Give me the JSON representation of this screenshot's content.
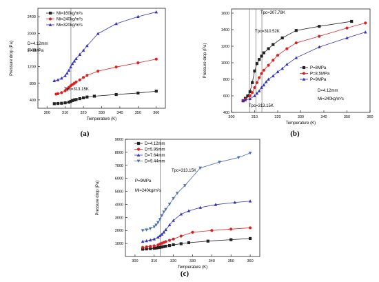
{
  "chart_data": [
    {
      "type": "line",
      "panel": "(a)",
      "xlabel": "Temperature (K)",
      "ylabel": "Pressure drop (Pa)",
      "xlim": [
        295,
        365
      ],
      "ylim": [
        200,
        2600
      ],
      "xticks": [
        300,
        310,
        320,
        330,
        340,
        350,
        360
      ],
      "yticks": [
        400,
        800,
        1200,
        1600,
        2000,
        2400
      ],
      "legend": "top-left",
      "annotations": [
        "D=4.12mm",
        "P=9MPa",
        "Tpc=313.15K"
      ],
      "vlines": [
        313.15
      ],
      "series": [
        {
          "name": "Mi=160kg/m²s",
          "color": "#222222",
          "marker": "square",
          "x": [
            304,
            306,
            308,
            310,
            312,
            313,
            314,
            315,
            316,
            318,
            320,
            322,
            326,
            338,
            350,
            360
          ],
          "y": [
            310,
            315,
            320,
            330,
            345,
            365,
            385,
            400,
            410,
            430,
            450,
            470,
            490,
            530,
            565,
            610
          ]
        },
        {
          "name": "Mi=240kg/m²s",
          "color": "#e02020",
          "marker": "circle",
          "x": [
            305,
            306,
            308,
            310,
            311,
            312,
            313,
            314,
            315,
            316,
            318,
            320,
            322,
            328,
            338,
            350,
            360
          ],
          "y": [
            540,
            550,
            575,
            620,
            660,
            700,
            740,
            770,
            800,
            830,
            880,
            940,
            990,
            1090,
            1190,
            1290,
            1380
          ]
        },
        {
          "name": "Mi=320kg/m²s",
          "color": "#3333bb",
          "marker": "triangle",
          "x": [
            304,
            306,
            308,
            310,
            311,
            312,
            313,
            314,
            315,
            316,
            318,
            320,
            322,
            328,
            338,
            350,
            360
          ],
          "y": [
            860,
            880,
            920,
            980,
            1040,
            1110,
            1190,
            1270,
            1330,
            1390,
            1490,
            1590,
            1700,
            1990,
            2230,
            2400,
            2510
          ]
        }
      ]
    },
    {
      "type": "line",
      "panel": "(b)",
      "xlabel": "Temperature (K)",
      "ylabel": "Pressure drop (Pa)",
      "xlim": [
        300,
        360
      ],
      "ylim": [
        400,
        1650
      ],
      "xticks": [
        300,
        310,
        320,
        330,
        340,
        350,
        360
      ],
      "yticks": [
        400,
        600,
        800,
        1000,
        1200,
        1400,
        1600
      ],
      "legend": "bottom-right",
      "annotations": [
        "D=4.12mm",
        "Mi=240kg/m²s",
        "Tpc=313.15K",
        "Tpc=310.52K",
        "Tpc=307.78K"
      ],
      "vlines": [
        307.78,
        310.52,
        313.15
      ],
      "series": [
        {
          "name": "P=8MPa",
          "color": "#222222",
          "marker": "square",
          "x": [
            305,
            306,
            307,
            308,
            309,
            310,
            311,
            312,
            313,
            314,
            316,
            318,
            322,
            328,
            338,
            352
          ],
          "y": [
            540,
            570,
            600,
            650,
            760,
            900,
            990,
            1040,
            1080,
            1120,
            1170,
            1220,
            1300,
            1390,
            1440,
            1500
          ]
        },
        {
          "name": "P=8.5MPa",
          "color": "#e02020",
          "marker": "circle",
          "x": [
            305,
            306,
            308,
            309,
            310,
            311,
            312,
            313,
            314,
            316,
            318,
            320,
            324,
            328,
            338,
            350,
            358
          ],
          "y": [
            545,
            560,
            600,
            640,
            700,
            760,
            820,
            870,
            910,
            970,
            1030,
            1090,
            1170,
            1240,
            1320,
            1420,
            1480
          ]
        },
        {
          "name": "P=9MPa",
          "color": "#3333bb",
          "marker": "triangle",
          "x": [
            305,
            306,
            308,
            310,
            311,
            312,
            313,
            314,
            315,
            316,
            318,
            320,
            322,
            324,
            328,
            338,
            350,
            358
          ],
          "y": [
            545,
            550,
            565,
            600,
            630,
            660,
            700,
            730,
            770,
            800,
            840,
            890,
            930,
            980,
            1060,
            1190,
            1300,
            1370
          ]
        }
      ]
    },
    {
      "type": "line",
      "panel": "(c)",
      "xlabel": "Temperature (K)",
      "ylabel": "Pressure drop (Pa)",
      "xlim": [
        295,
        365
      ],
      "ylim": [
        0,
        9000
      ],
      "xticks": [
        300,
        310,
        320,
        330,
        340,
        350,
        360
      ],
      "yticks": [
        1000,
        2000,
        3000,
        4000,
        5000,
        6000,
        7000,
        8000,
        9000
      ],
      "legend": "top-left",
      "annotations": [
        "P=9MPa",
        "Mi=240kg/m²s",
        "Tpc=313.15K"
      ],
      "vlines": [
        313.15
      ],
      "series": [
        {
          "name": "D=4.12mm",
          "color": "#222222",
          "marker": "square",
          "x": [
            304,
            306,
            308,
            310,
            311,
            312,
            313,
            314,
            315,
            316,
            318,
            320,
            324,
            328,
            338,
            350,
            360
          ],
          "y": [
            560,
            580,
            600,
            630,
            650,
            680,
            700,
            730,
            760,
            790,
            840,
            900,
            980,
            1060,
            1180,
            1290,
            1380
          ]
        },
        {
          "name": "D=5.95mm",
          "color": "#e02020",
          "marker": "circle",
          "x": [
            304,
            306,
            308,
            310,
            312,
            313,
            314,
            315,
            316,
            318,
            320,
            324,
            330,
            340,
            350,
            360
          ],
          "y": [
            700,
            740,
            780,
            820,
            890,
            960,
            1020,
            1080,
            1140,
            1240,
            1340,
            1560,
            1860,
            2000,
            2100,
            2200
          ]
        },
        {
          "name": "D=7.64mm",
          "color": "#3333bb",
          "marker": "triangle",
          "x": [
            304,
            306,
            308,
            310,
            312,
            313,
            314,
            315,
            316,
            318,
            320,
            324,
            328,
            334,
            342,
            352,
            360
          ],
          "y": [
            1150,
            1200,
            1260,
            1340,
            1480,
            1580,
            1700,
            1870,
            2050,
            2420,
            2760,
            3250,
            3500,
            3760,
            3980,
            4150,
            4250
          ]
        },
        {
          "name": "D=9.44mm",
          "color": "#4a6fb0",
          "marker": "triangle-down",
          "x": [
            304,
            306,
            308,
            310,
            311,
            312,
            313,
            314,
            315,
            316,
            318,
            320,
            322,
            326,
            334,
            344,
            354,
            360
          ],
          "y": [
            2000,
            2050,
            2150,
            2280,
            2420,
            2620,
            2850,
            3150,
            3420,
            3620,
            4020,
            4460,
            4860,
            5450,
            6800,
            7250,
            7600,
            7950
          ]
        }
      ]
    }
  ],
  "captions": [
    "(a)",
    "(b)",
    "(c)"
  ]
}
